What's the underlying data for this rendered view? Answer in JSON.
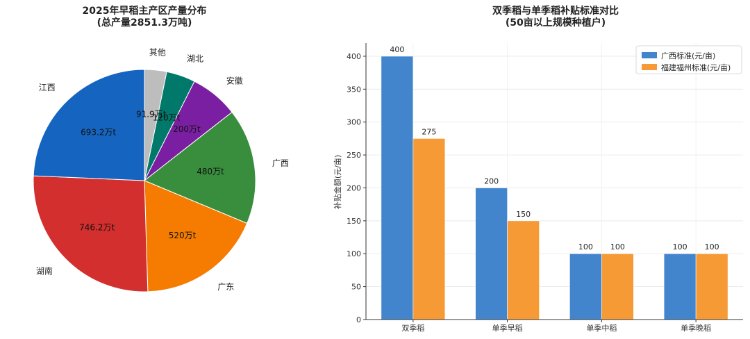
{
  "chart_data": [
    {
      "type": "pie",
      "title": "2025年早稻主产区产量分布",
      "subtitle": "(总产量2851.3万吨)",
      "value_suffix": "万t",
      "slices": [
        {
          "label": "其他",
          "value": 91.9,
          "value_text": "91.9万t",
          "color": "#bdbdbd"
        },
        {
          "label": "湖北",
          "value": 120,
          "value_text": "120万t",
          "color": "#00796b"
        },
        {
          "label": "安徽",
          "value": 200,
          "value_text": "200万t",
          "color": "#7b1fa2"
        },
        {
          "label": "广西",
          "value": 480,
          "value_text": "480万t",
          "color": "#388e3c"
        },
        {
          "label": "广东",
          "value": 520,
          "value_text": "520万t",
          "color": "#f57c00"
        },
        {
          "label": "湖南",
          "value": 746.2,
          "value_text": "746.2万t",
          "color": "#d32f2f"
        },
        {
          "label": "江西",
          "value": 693.2,
          "value_text": "693.2万t",
          "color": "#1565c0"
        }
      ]
    },
    {
      "type": "bar",
      "title": "双季稻与单季稻补贴标准对比",
      "subtitle": "(50亩以上规模种植户)",
      "xlabel": "",
      "ylabel": "补贴金额(元/亩)",
      "ylim": [
        0,
        420
      ],
      "yticks": [
        0,
        50,
        100,
        150,
        200,
        250,
        300,
        350,
        400
      ],
      "categories": [
        "双季稻",
        "单季早稻",
        "单季中稻",
        "单季晚稻"
      ],
      "legend_position": "top-right",
      "series": [
        {
          "name": "广西标准(元/亩)",
          "values": [
            400,
            200,
            100,
            100
          ],
          "color": "#4285cd"
        },
        {
          "name": "福建福州标准(元/亩)",
          "values": [
            275,
            150,
            100,
            100
          ],
          "color": "#f59a35"
        }
      ]
    }
  ]
}
